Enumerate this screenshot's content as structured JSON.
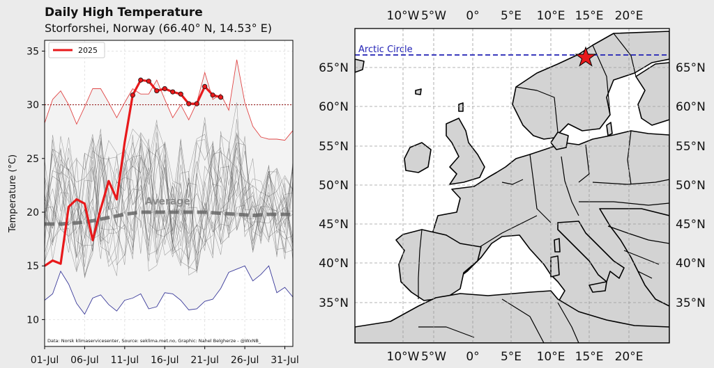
{
  "header": {
    "title": "Daily High Temperature",
    "subtitle": "Storforshei, Norway (66.40° N, 14.53° E)"
  },
  "chart_data": {
    "type": "line",
    "ylabel": "Temperature (°C)",
    "ylim": [
      7.5,
      36
    ],
    "yticks": [
      "10",
      "15",
      "20",
      "25",
      "30",
      "35"
    ],
    "xlim": [
      1,
      32
    ],
    "xticks": [
      {
        "day": 1,
        "label": "01-Jul"
      },
      {
        "day": 6,
        "label": "06-Jul"
      },
      {
        "day": 11,
        "label": "11-Jul"
      },
      {
        "day": 16,
        "label": "16-Jul"
      },
      {
        "day": 21,
        "label": "21-Jul"
      },
      {
        "day": 26,
        "label": "26-Jul"
      },
      {
        "day": 31,
        "label": "31-Jul"
      }
    ],
    "grid": true,
    "legend": {
      "position": "top-left",
      "entries": [
        "2025"
      ]
    },
    "threshold_line": 30,
    "average_label": "Average",
    "source_text": "Data: Norsk klimaservicesenter, Source: seklima.met.no, Graphic: Nahel Belgherze - @WxNB_",
    "series": [
      {
        "name": "2025",
        "color": "#e8191b",
        "days": [
          1,
          2,
          3,
          4,
          5,
          6,
          7,
          8,
          9,
          10,
          11,
          12,
          13,
          14,
          15,
          16,
          17,
          18,
          19,
          20,
          21,
          22,
          23,
          24
        ],
        "values": [
          15.0,
          15.5,
          15.2,
          20.5,
          21.2,
          20.8,
          17.4,
          20.3,
          22.9,
          21.2,
          26.5,
          30.9,
          32.3,
          32.2,
          31.3,
          31.5,
          31.2,
          31.0,
          30.1,
          30.1,
          31.7,
          30.9,
          30.7,
          null
        ],
        "markers_from_day": 12
      }
    ],
    "average": {
      "color": "#666666",
      "days": [
        1,
        3,
        5,
        7,
        9,
        11,
        13,
        15,
        17,
        19,
        21,
        23,
        25,
        27,
        29,
        32
      ],
      "values": [
        18.9,
        18.9,
        19.0,
        19.2,
        19.5,
        19.8,
        20.0,
        20.0,
        20.0,
        20.0,
        20.0,
        19.9,
        19.8,
        19.7,
        19.8,
        19.8
      ]
    },
    "record_max": {
      "color": "#e04545",
      "days": [
        1,
        2,
        3,
        4,
        5,
        6,
        7,
        8,
        9,
        10,
        11,
        12,
        13,
        14,
        15,
        16,
        17,
        18,
        19,
        20,
        21,
        22,
        23,
        24,
        25,
        26,
        27,
        28,
        29,
        30,
        31,
        32
      ],
      "values": [
        28.3,
        30.5,
        31.3,
        30.0,
        28.2,
        29.8,
        31.5,
        31.5,
        30.2,
        28.8,
        30.2,
        31.5,
        31.0,
        31.0,
        32.3,
        30.5,
        28.8,
        30.0,
        28.6,
        30.2,
        33.0,
        30.5,
        31.0,
        29.5,
        34.2,
        30.2,
        28.0,
        27.0,
        26.8,
        26.8,
        26.7,
        27.6
      ]
    },
    "record_min": {
      "color": "#3a3a9a",
      "days": [
        1,
        2,
        3,
        4,
        5,
        6,
        7,
        8,
        9,
        10,
        11,
        12,
        13,
        14,
        15,
        16,
        17,
        18,
        19,
        20,
        21,
        22,
        23,
        24,
        25,
        26,
        27,
        28,
        29,
        30,
        31,
        32
      ],
      "values": [
        11.8,
        12.4,
        14.5,
        13.3,
        11.5,
        10.5,
        12.0,
        12.3,
        11.4,
        10.8,
        11.8,
        12.0,
        12.4,
        11.0,
        11.2,
        12.5,
        12.4,
        11.8,
        10.9,
        11.0,
        11.7,
        11.9,
        12.9,
        14.4,
        14.7,
        15.0,
        13.6,
        14.2,
        15.0,
        12.5,
        13.0,
        12.1
      ]
    }
  },
  "map": {
    "lon_ticks": [
      "10°W",
      "5°W",
      "0°",
      "5°E",
      "10°E",
      "15°E",
      "20°E"
    ],
    "lat_ticks": [
      "65°N",
      "60°N",
      "55°N",
      "50°N",
      "45°N",
      "40°N",
      "35°N"
    ],
    "arctic_label": "Arctic Circle",
    "colors": {
      "land": "#d3d3d3",
      "sea": "#ffffff",
      "marker": "#e8191b",
      "arctic": "#1f1fb4"
    }
  }
}
